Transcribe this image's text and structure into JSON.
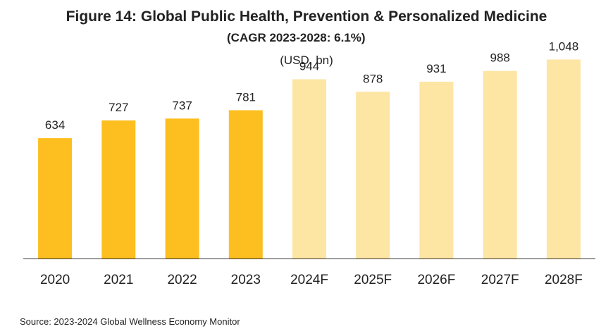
{
  "title": "Figure 14: Global Public Health, Prevention & Personalized Medicine",
  "subtitle": "(CAGR 2023-2028: 6.1%)",
  "unit": "(USD, bn)",
  "source": "Source: 2023-2024 Global Wellness Economy Monitor",
  "colors": {
    "actual": "#FDBE1F",
    "forecast": "#FDE5A4",
    "axis": "#333333"
  },
  "chart_data": {
    "type": "bar",
    "title": "Figure 14: Global Public Health, Prevention & Personalized Medicine",
    "subtitle": "(CAGR 2023-2028: 6.1%)",
    "ylabel": "(USD, bn)",
    "categories": [
      "2020",
      "2021",
      "2022",
      "2023",
      "2024F",
      "2025F",
      "2026F",
      "2027F",
      "2028F"
    ],
    "values": [
      634,
      727,
      737,
      781,
      944,
      878,
      931,
      988,
      1048
    ],
    "value_labels": [
      "634",
      "727",
      "737",
      "781",
      "944",
      "878",
      "931",
      "988",
      "1,048"
    ],
    "forecast": [
      false,
      false,
      false,
      false,
      true,
      true,
      true,
      true,
      true
    ],
    "ylim": [
      0,
      1150
    ],
    "grid": false,
    "legend": "none"
  }
}
